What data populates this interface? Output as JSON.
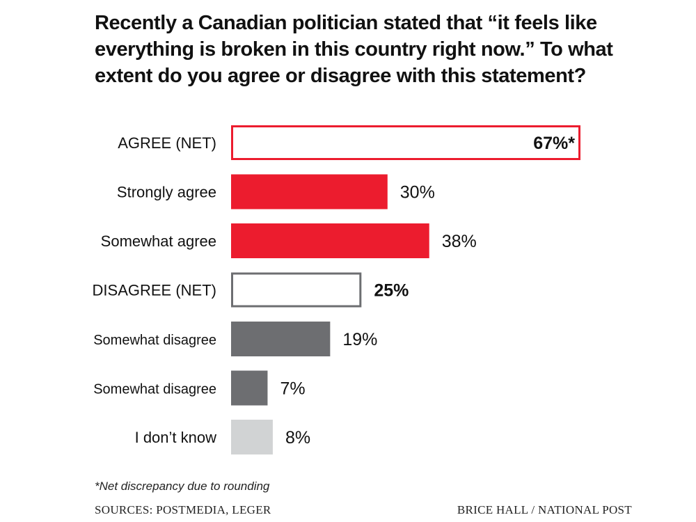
{
  "title": "Recently a Canadian politician stated that “it feels like everything is broken in this country right now.” To what extent do you agree or disagree with this statement?",
  "footnote": "*Net discrepancy due to rounding",
  "source": "SOURCES: POSTMEDIA, LEGER",
  "credit": "BRICE HALL / NATIONAL POST",
  "colors": {
    "red": "#ec1c2e",
    "dark_gray": "#6d6e71",
    "light_gray": "#d1d3d4",
    "text": "#111111"
  },
  "chart_data": {
    "type": "bar",
    "orientation": "horizontal",
    "categories": [
      "AGREE (NET)",
      "Strongly agree",
      "Somewhat agree",
      "DISAGREE (NET)",
      "Somewhat disagree",
      "Somewhat disagree",
      "I don’t know"
    ],
    "values": [
      67,
      30,
      38,
      25,
      19,
      7,
      8
    ],
    "value_labels": [
      "67%*",
      "30%",
      "38%",
      "25%",
      "19%",
      "7%",
      "8%"
    ],
    "styles": [
      "outline-red",
      "red",
      "red",
      "outline-gray",
      "dark-gray",
      "dark-gray",
      "light-gray"
    ],
    "label_bold": [
      true,
      false,
      false,
      true,
      false,
      false,
      false
    ],
    "label_inside": [
      true,
      false,
      false,
      false,
      false,
      false,
      false
    ],
    "xlim": [
      0,
      67
    ],
    "title": "Recently a Canadian politician stated that “it feels like everything is broken in this country right now.” To what extent do you agree or disagree with this statement?",
    "xlabel": "",
    "ylabel": "",
    "grid": false,
    "legend": "none"
  }
}
